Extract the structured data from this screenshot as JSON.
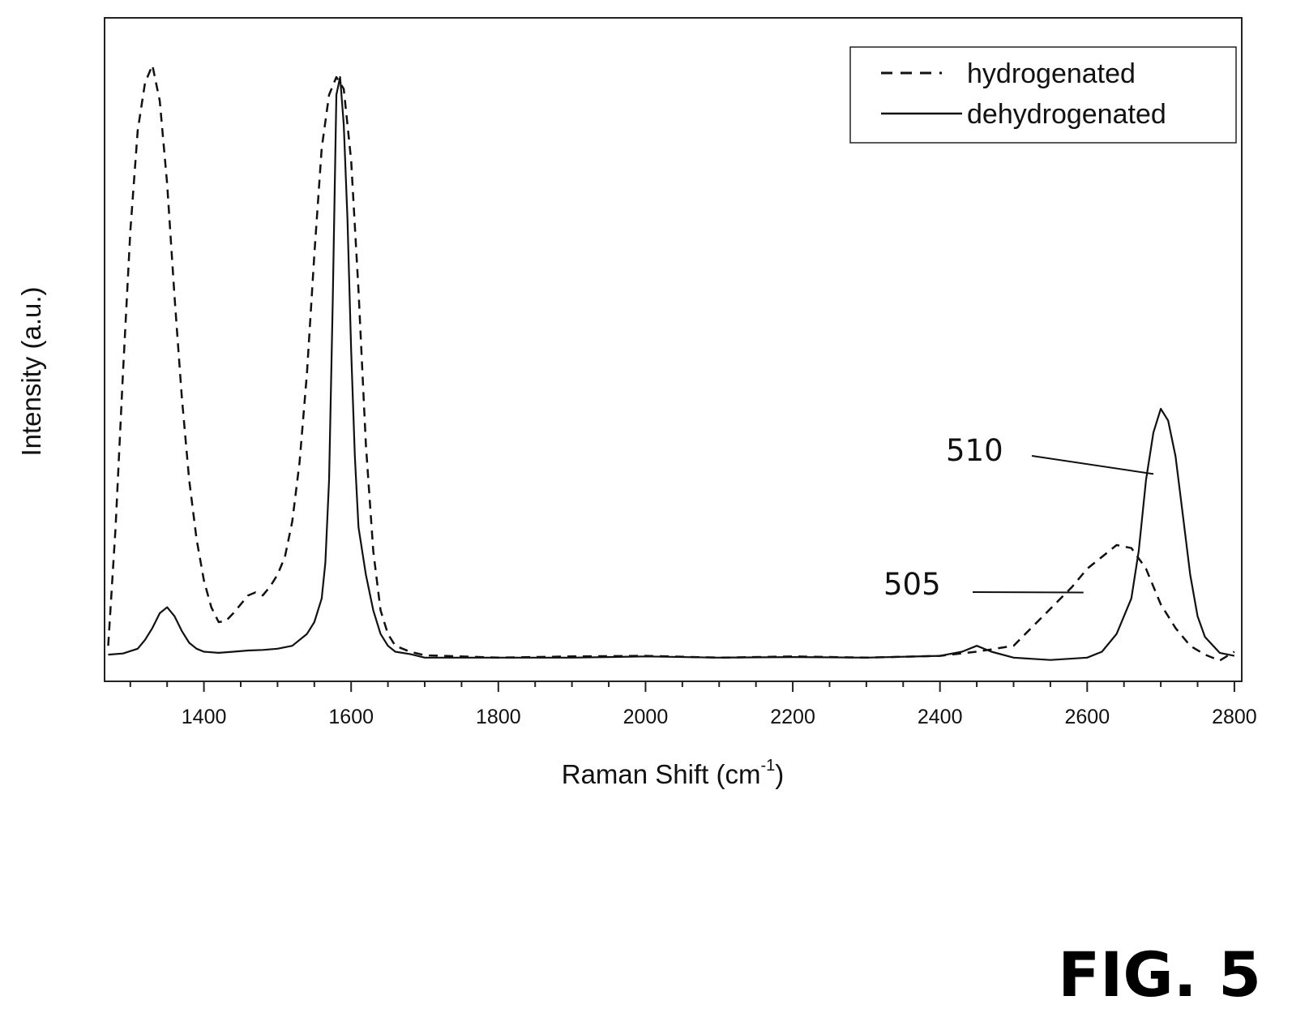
{
  "chart_data": {
    "type": "line",
    "title": "",
    "xlabel": "Raman Shift (cm",
    "xlabel_superscript": "-1",
    "xlabel_suffix": ")",
    "ylabel": "Intensity (a.u.)",
    "xlim": [
      1265,
      2810
    ],
    "ylim": [
      -0.04,
      1.08
    ],
    "x_ticks": [
      1400,
      1600,
      1800,
      2000,
      2200,
      2400,
      2600,
      2800
    ],
    "x_minor_step": 50,
    "y_ticks_visible": false,
    "grid": false,
    "legend_position": "top-right",
    "colors": {
      "line": "#111111",
      "axis": "#222222",
      "background": "#ffffff"
    },
    "series": [
      {
        "name": "hydrogenated",
        "style": "dashed",
        "x": [
          1270,
          1280,
          1290,
          1300,
          1310,
          1320,
          1330,
          1340,
          1350,
          1360,
          1370,
          1380,
          1390,
          1400,
          1410,
          1420,
          1430,
          1440,
          1450,
          1460,
          1470,
          1480,
          1490,
          1500,
          1510,
          1520,
          1530,
          1540,
          1550,
          1560,
          1570,
          1580,
          1590,
          1600,
          1610,
          1620,
          1630,
          1640,
          1650,
          1660,
          1680,
          1700,
          1800,
          1900,
          2000,
          2100,
          2200,
          2300,
          2400,
          2450,
          2500,
          2520,
          2540,
          2560,
          2580,
          2600,
          2620,
          2640,
          2660,
          2680,
          2700,
          2720,
          2740,
          2760,
          2780,
          2800
        ],
        "y": [
          0.02,
          0.22,
          0.48,
          0.72,
          0.89,
          0.97,
          1.0,
          0.94,
          0.8,
          0.61,
          0.44,
          0.3,
          0.2,
          0.13,
          0.085,
          0.06,
          0.062,
          0.075,
          0.09,
          0.105,
          0.11,
          0.105,
          0.12,
          0.14,
          0.17,
          0.23,
          0.33,
          0.48,
          0.68,
          0.86,
          0.95,
          0.98,
          0.96,
          0.84,
          0.62,
          0.36,
          0.18,
          0.08,
          0.04,
          0.02,
          0.01,
          0.004,
          0.0,
          0.002,
          0.003,
          0.0,
          0.002,
          0.0,
          0.003,
          0.01,
          0.02,
          0.045,
          0.07,
          0.095,
          0.12,
          0.15,
          0.17,
          0.19,
          0.185,
          0.15,
          0.09,
          0.05,
          0.02,
          0.005,
          -0.005,
          0.01
        ]
      },
      {
        "name": "dehydrogenated",
        "style": "solid",
        "x": [
          1270,
          1290,
          1310,
          1320,
          1330,
          1340,
          1350,
          1360,
          1370,
          1380,
          1390,
          1400,
          1420,
          1440,
          1460,
          1480,
          1500,
          1520,
          1540,
          1550,
          1560,
          1565,
          1570,
          1575,
          1580,
          1585,
          1590,
          1595,
          1600,
          1605,
          1610,
          1620,
          1630,
          1640,
          1650,
          1660,
          1680,
          1700,
          1800,
          1900,
          2000,
          2100,
          2200,
          2300,
          2400,
          2430,
          2450,
          2470,
          2500,
          2550,
          2600,
          2620,
          2640,
          2660,
          2670,
          2680,
          2690,
          2700,
          2710,
          2720,
          2730,
          2740,
          2750,
          2760,
          2780,
          2800
        ],
        "y": [
          0.005,
          0.007,
          0.015,
          0.03,
          0.05,
          0.075,
          0.085,
          0.07,
          0.045,
          0.025,
          0.015,
          0.01,
          0.008,
          0.01,
          0.012,
          0.013,
          0.015,
          0.02,
          0.04,
          0.06,
          0.1,
          0.16,
          0.3,
          0.6,
          0.95,
          0.98,
          0.9,
          0.74,
          0.52,
          0.34,
          0.22,
          0.14,
          0.08,
          0.04,
          0.02,
          0.01,
          0.006,
          0.0,
          0.0,
          0.0,
          0.002,
          0.0,
          0.001,
          0.0,
          0.003,
          0.01,
          0.02,
          0.01,
          0.0,
          -0.004,
          0.0,
          0.01,
          0.04,
          0.1,
          0.18,
          0.3,
          0.38,
          0.42,
          0.4,
          0.34,
          0.24,
          0.14,
          0.07,
          0.035,
          0.008,
          0.003
        ]
      }
    ],
    "annotations": [
      {
        "label": "510",
        "target_series": "dehydrogenated",
        "x": 2690,
        "y": 0.31
      },
      {
        "label": "505",
        "target_series": "hydrogenated",
        "x": 2595,
        "y": 0.11
      }
    ]
  },
  "figure_label": "FIG. 5"
}
